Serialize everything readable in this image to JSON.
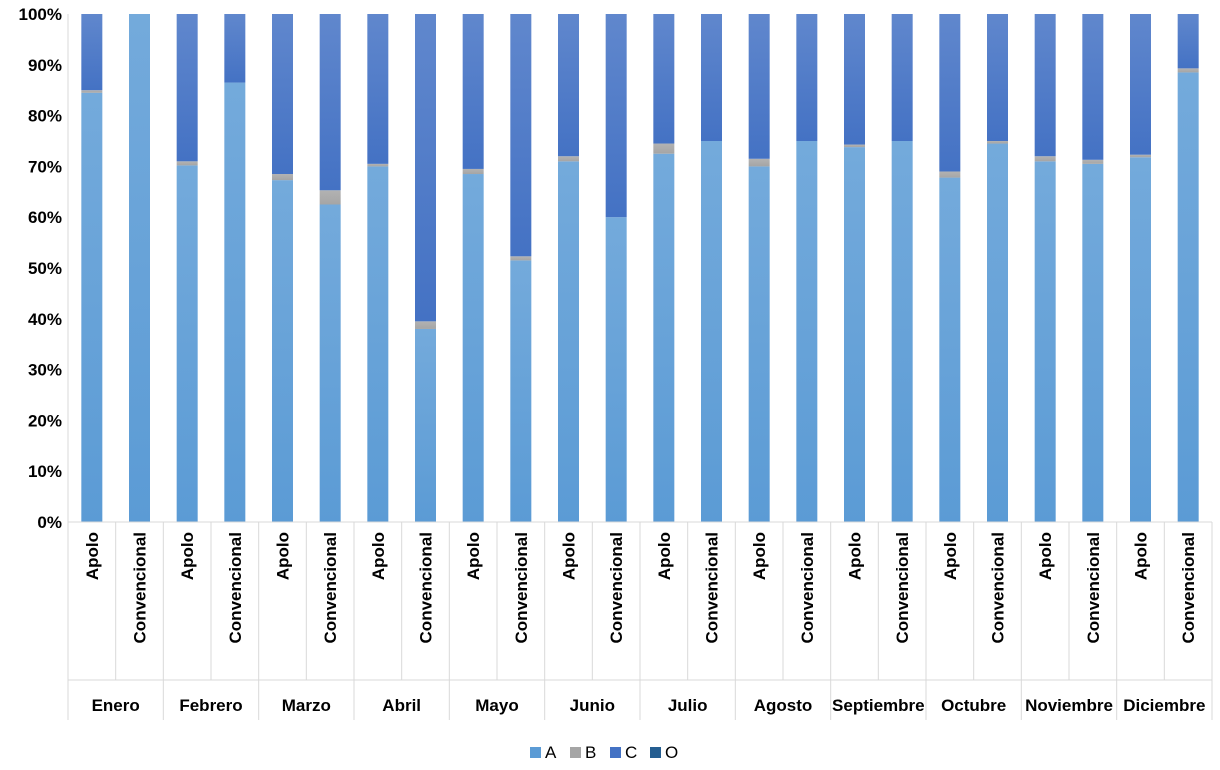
{
  "chart_data": {
    "type": "bar",
    "stacked": true,
    "percent": true,
    "ylim": [
      0,
      100
    ],
    "y_ticks": [
      "0%",
      "10%",
      "20%",
      "30%",
      "40%",
      "50%",
      "60%",
      "70%",
      "80%",
      "90%",
      "100%"
    ],
    "grid": false,
    "legend_position": "bottom",
    "groups": [
      {
        "month": "Enero",
        "categories": [
          {
            "label": "Apolo",
            "values": [
              84.5,
              0.5,
              15.0,
              0.0
            ]
          },
          {
            "label": "Convencional",
            "values": [
              100.0,
              0.0,
              0.0,
              0.0
            ]
          }
        ]
      },
      {
        "month": "Febrero",
        "categories": [
          {
            "label": "Apolo",
            "values": [
              70.2,
              0.8,
              29.0,
              0.0
            ]
          },
          {
            "label": "Convencional",
            "values": [
              86.5,
              0.0,
              13.5,
              0.0
            ]
          }
        ]
      },
      {
        "month": "Marzo",
        "categories": [
          {
            "label": "Apolo",
            "values": [
              67.3,
              1.2,
              31.5,
              0.0
            ]
          },
          {
            "label": "Convencional",
            "values": [
              62.5,
              2.8,
              34.7,
              0.0
            ]
          }
        ]
      },
      {
        "month": "Abril",
        "categories": [
          {
            "label": "Apolo",
            "values": [
              70.0,
              0.5,
              29.5,
              0.0
            ]
          },
          {
            "label": "Convencional",
            "values": [
              38.0,
              1.5,
              60.5,
              0.0
            ]
          }
        ]
      },
      {
        "month": "Mayo",
        "categories": [
          {
            "label": "Apolo",
            "values": [
              68.5,
              1.0,
              30.5,
              0.0
            ]
          },
          {
            "label": "Convencional",
            "values": [
              51.5,
              0.8,
              47.7,
              0.0
            ]
          }
        ]
      },
      {
        "month": "Junio",
        "categories": [
          {
            "label": "Apolo",
            "values": [
              71.0,
              1.0,
              28.0,
              0.0
            ]
          },
          {
            "label": "Convencional",
            "values": [
              60.0,
              0.0,
              40.0,
              0.0
            ]
          }
        ]
      },
      {
        "month": "Julio",
        "categories": [
          {
            "label": "Apolo",
            "values": [
              72.5,
              2.0,
              25.5,
              0.0
            ]
          },
          {
            "label": "Convencional",
            "values": [
              75.0,
              0.0,
              25.0,
              0.0
            ]
          }
        ]
      },
      {
        "month": "Agosto",
        "categories": [
          {
            "label": "Apolo",
            "values": [
              70.0,
              1.5,
              28.5,
              0.0
            ]
          },
          {
            "label": "Convencional",
            "values": [
              75.0,
              0.0,
              25.0,
              0.0
            ]
          }
        ]
      },
      {
        "month": "Septiembre",
        "categories": [
          {
            "label": "Apolo",
            "values": [
              73.8,
              0.5,
              25.7,
              0.0
            ]
          },
          {
            "label": "Convencional",
            "values": [
              75.0,
              0.0,
              25.0,
              0.0
            ]
          }
        ]
      },
      {
        "month": "Octubre",
        "categories": [
          {
            "label": "Apolo",
            "values": [
              67.8,
              1.2,
              31.0,
              0.0
            ]
          },
          {
            "label": "Convencional",
            "values": [
              74.5,
              0.5,
              25.0,
              0.0
            ]
          }
        ]
      },
      {
        "month": "Noviembre",
        "categories": [
          {
            "label": "Apolo",
            "values": [
              71.0,
              1.0,
              28.0,
              0.0
            ]
          },
          {
            "label": "Convencional",
            "values": [
              70.5,
              0.8,
              28.7,
              0.0
            ]
          }
        ]
      },
      {
        "month": "Diciembre",
        "categories": [
          {
            "label": "Apolo",
            "values": [
              71.8,
              0.5,
              27.7,
              0.0
            ]
          },
          {
            "label": "Convencional",
            "values": [
              88.5,
              0.8,
              10.7,
              0.0
            ]
          }
        ]
      }
    ],
    "series": [
      {
        "name": "A",
        "color": "#5b9bd5"
      },
      {
        "name": "B",
        "color": "#a5a5a5"
      },
      {
        "name": "C",
        "color": "#4472c4"
      },
      {
        "name": "O",
        "color": "#255e91"
      }
    ]
  }
}
